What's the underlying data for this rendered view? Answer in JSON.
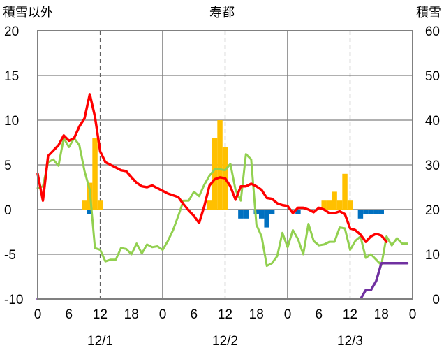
{
  "chart_data": {
    "type": "line",
    "title": "寿都",
    "left_axis_label": "積雪以外",
    "right_axis_label": "積雪",
    "ylim_left": [
      -10,
      20
    ],
    "yticks_left": [
      -10,
      -5,
      0,
      5,
      10,
      15,
      20
    ],
    "ylim_right": [
      0,
      60
    ],
    "yticks_right": [
      0,
      10,
      20,
      30,
      40,
      50,
      60
    ],
    "x_range_hours": [
      0,
      72
    ],
    "xtick_labels": [
      "0",
      "6",
      "12",
      "18",
      "0",
      "6",
      "12",
      "18",
      "0",
      "6",
      "12",
      "18",
      "0"
    ],
    "day_labels": [
      "12/1",
      "12/2",
      "12/3"
    ],
    "grid": "vertical solid at day boundaries, dashed at noon",
    "colors": {
      "temperature": "#ff0000",
      "dewpoint": "#92d050",
      "precip": "#ffc000",
      "snow_change": "#0070c0",
      "snow_depth": "#7030a0"
    },
    "temperature": [
      [
        0,
        4.0
      ],
      [
        1,
        1.0
      ],
      [
        2,
        6.0
      ],
      [
        3,
        6.6
      ],
      [
        4,
        7.2
      ],
      [
        5,
        8.3
      ],
      [
        6,
        7.7
      ],
      [
        7,
        8.0
      ],
      [
        8,
        9.3
      ],
      [
        9,
        10.2
      ],
      [
        10,
        12.9
      ],
      [
        11,
        10.4
      ],
      [
        12,
        6.5
      ],
      [
        13,
        5.3
      ],
      [
        14,
        5.0
      ],
      [
        15,
        4.7
      ],
      [
        16,
        4.4
      ],
      [
        17,
        4.3
      ],
      [
        18,
        3.6
      ],
      [
        19,
        3.0
      ],
      [
        20,
        2.6
      ],
      [
        21,
        2.5
      ],
      [
        22,
        2.7
      ],
      [
        23,
        2.4
      ],
      [
        24,
        2.1
      ],
      [
        25,
        1.8
      ],
      [
        26,
        1.6
      ],
      [
        27,
        1.4
      ],
      [
        28,
        0.6
      ],
      [
        29,
        -0.1
      ],
      [
        30,
        -0.7
      ],
      [
        31,
        -1.5
      ],
      [
        32,
        0.4
      ],
      [
        33,
        2.7
      ],
      [
        34,
        3.4
      ],
      [
        35,
        3.6
      ],
      [
        36,
        3.5
      ],
      [
        37,
        2.6
      ],
      [
        38,
        1.1
      ],
      [
        39,
        2.6
      ],
      [
        40,
        2.6
      ],
      [
        41,
        2.9
      ],
      [
        42,
        2.6
      ],
      [
        43,
        2.2
      ],
      [
        44,
        1.3
      ],
      [
        45,
        1.2
      ],
      [
        46,
        0.7
      ],
      [
        47,
        0.5
      ],
      [
        48,
        0.4
      ],
      [
        49,
        -0.4
      ],
      [
        50,
        0.2
      ],
      [
        51,
        0.2
      ],
      [
        52,
        0.0
      ],
      [
        53,
        -0.3
      ],
      [
        54,
        0.2
      ],
      [
        55,
        0.0
      ],
      [
        56,
        -0.4
      ],
      [
        57,
        -0.4
      ],
      [
        58,
        -0.2
      ],
      [
        59,
        -0.5
      ],
      [
        60,
        -2.1
      ],
      [
        61,
        -2.3
      ],
      [
        62,
        -2.8
      ],
      [
        63,
        -3.6
      ],
      [
        64,
        -3.0
      ],
      [
        65,
        -2.7
      ],
      [
        66,
        -2.9
      ],
      [
        67,
        -3.6
      ]
    ],
    "dewpoint": [
      [
        0,
        2.4
      ],
      [
        1,
        2.6
      ],
      [
        2,
        5.3
      ],
      [
        3,
        5.6
      ],
      [
        4,
        4.9
      ],
      [
        5,
        8.0
      ],
      [
        6,
        7.0
      ],
      [
        7,
        8.0
      ],
      [
        8,
        7.2
      ],
      [
        9,
        4.3
      ],
      [
        10,
        2.2
      ],
      [
        11,
        -4.3
      ],
      [
        12,
        -4.5
      ],
      [
        13,
        -5.8
      ],
      [
        14,
        -5.6
      ],
      [
        15,
        -5.6
      ],
      [
        16,
        -4.3
      ],
      [
        17,
        -4.4
      ],
      [
        18,
        -5.0
      ],
      [
        19,
        -3.8
      ],
      [
        20,
        -4.9
      ],
      [
        21,
        -3.9
      ],
      [
        22,
        -4.2
      ],
      [
        23,
        -4.1
      ],
      [
        24,
        -4.5
      ],
      [
        25,
        -3.5
      ],
      [
        26,
        -2.3
      ],
      [
        27,
        -0.7
      ],
      [
        28,
        1.0
      ],
      [
        29,
        1.0
      ],
      [
        30,
        2.0
      ],
      [
        31,
        1.5
      ],
      [
        32,
        2.8
      ],
      [
        33,
        3.8
      ],
      [
        34,
        4.5
      ],
      [
        35,
        4.5
      ],
      [
        36,
        4.4
      ],
      [
        37,
        5.1
      ],
      [
        38,
        2.2
      ],
      [
        39,
        1.0
      ],
      [
        40,
        6.2
      ],
      [
        41,
        5.6
      ],
      [
        42,
        -1.7
      ],
      [
        43,
        -3.0
      ],
      [
        44,
        -6.3
      ],
      [
        45,
        -6.0
      ],
      [
        46,
        -5.2
      ],
      [
        47,
        -2.6
      ],
      [
        48,
        -4.2
      ],
      [
        49,
        -2.3
      ],
      [
        50,
        -3.3
      ],
      [
        51,
        -5.0
      ],
      [
        52,
        -1.6
      ],
      [
        53,
        -3.5
      ],
      [
        54,
        -4.0
      ],
      [
        55,
        -3.9
      ],
      [
        56,
        -3.6
      ],
      [
        57,
        -3.6
      ],
      [
        58,
        -2.0
      ],
      [
        59,
        -2.1
      ],
      [
        60,
        -4.5
      ],
      [
        61,
        -3.5
      ],
      [
        62,
        -3.0
      ],
      [
        63,
        -5.4
      ],
      [
        64,
        -5.0
      ],
      [
        65,
        -5.6
      ],
      [
        66,
        -6.2
      ],
      [
        67,
        -3.0
      ],
      [
        68,
        -4.0
      ],
      [
        69,
        -3.2
      ],
      [
        70,
        -3.8
      ],
      [
        71,
        -3.8
      ]
    ],
    "precipitation_bars": [
      [
        9,
        1
      ],
      [
        10,
        3
      ],
      [
        11,
        8
      ],
      [
        12,
        1
      ],
      [
        33,
        1
      ],
      [
        34,
        8
      ],
      [
        35,
        10
      ],
      [
        36,
        7
      ],
      [
        55,
        1
      ],
      [
        56,
        1
      ],
      [
        57,
        2
      ],
      [
        58,
        1
      ],
      [
        59,
        4
      ],
      [
        60,
        1
      ]
    ],
    "snow_change_bars": [
      [
        10,
        -0.5
      ],
      [
        39,
        -1
      ],
      [
        40,
        -1
      ],
      [
        42,
        -0.5
      ],
      [
        43,
        -1
      ],
      [
        44,
        -2
      ],
      [
        45,
        -0.5
      ],
      [
        50,
        -0.5
      ],
      [
        62,
        -1
      ],
      [
        63,
        -0.5
      ],
      [
        64,
        -0.5
      ],
      [
        65,
        -0.5
      ],
      [
        66,
        -0.5
      ]
    ],
    "snow_depth": [
      [
        0,
        0
      ],
      [
        62,
        0
      ],
      [
        63,
        2
      ],
      [
        64,
        2
      ],
      [
        65,
        4
      ],
      [
        66,
        8
      ],
      [
        67,
        8
      ],
      [
        68,
        8
      ],
      [
        71,
        8
      ]
    ]
  }
}
